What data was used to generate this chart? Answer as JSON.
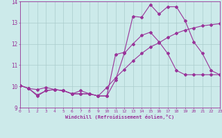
{
  "xlabel": "Windchill (Refroidissement éolien,°C)",
  "background_color": "#cceaea",
  "grid_color": "#aacccc",
  "line_color": "#993399",
  "xmin": 0,
  "xmax": 23,
  "ymin": 9,
  "ymax": 14,
  "line1_x": [
    0,
    1,
    2,
    3,
    4,
    5,
    6,
    7,
    8,
    9,
    10,
    11,
    12,
    13,
    14,
    15,
    16,
    17,
    18,
    19,
    20,
    21,
    22,
    23
  ],
  "line1_y": [
    10.05,
    9.9,
    9.55,
    9.8,
    9.85,
    9.8,
    9.65,
    9.65,
    9.65,
    9.55,
    9.55,
    11.5,
    11.6,
    13.3,
    13.25,
    13.85,
    13.4,
    13.75,
    13.75,
    13.1,
    12.1,
    11.55,
    10.75,
    10.55
  ],
  "line2_x": [
    0,
    1,
    2,
    3,
    4,
    5,
    6,
    7,
    8,
    9,
    10,
    11,
    12,
    13,
    14,
    15,
    16,
    17,
    18,
    19,
    20,
    21,
    22,
    23
  ],
  "line2_y": [
    10.05,
    9.9,
    9.85,
    9.95,
    9.85,
    9.8,
    9.65,
    9.8,
    9.65,
    9.55,
    9.95,
    10.4,
    10.8,
    11.2,
    11.55,
    11.85,
    12.05,
    12.3,
    12.5,
    12.65,
    12.75,
    12.85,
    12.9,
    12.95
  ],
  "line3_x": [
    0,
    1,
    2,
    3,
    4,
    5,
    6,
    7,
    8,
    9,
    10,
    11,
    12,
    13,
    14,
    15,
    16,
    17,
    18,
    19,
    20,
    21,
    22,
    23
  ],
  "line3_y": [
    10.05,
    9.9,
    9.6,
    9.8,
    9.85,
    9.8,
    9.65,
    9.65,
    9.65,
    9.55,
    9.55,
    10.3,
    11.55,
    12.0,
    12.4,
    12.55,
    12.1,
    11.55,
    10.75,
    10.55,
    10.55,
    10.55,
    10.55,
    10.55
  ]
}
